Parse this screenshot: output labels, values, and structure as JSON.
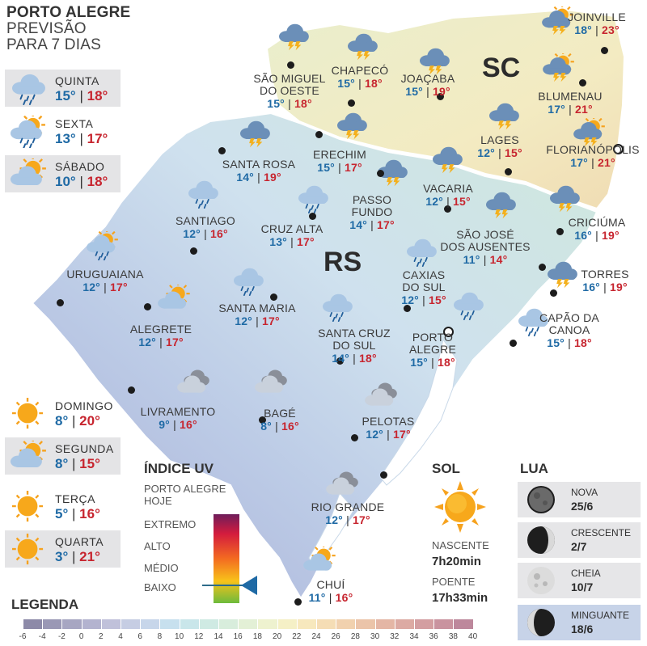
{
  "header": {
    "line1": "PORTO ALEGRE",
    "line2": "PREVISÃO",
    "line3": "PARA 7 DIAS"
  },
  "forecast": [
    {
      "day": "QUINTA",
      "min": "15°",
      "max": "18°",
      "icon": "rain-cloud-icon",
      "shaded": true
    },
    {
      "day": "SEXTA",
      "min": "13°",
      "max": "17°",
      "icon": "sun-rain-cloud-icon",
      "shaded": false
    },
    {
      "day": "SÁBADO",
      "min": "10°",
      "max": "18°",
      "icon": "partly-sunny-icon",
      "shaded": true
    },
    {
      "day": "DOMINGO",
      "min": "8°",
      "max": "20°",
      "icon": "sun-icon",
      "shaded": false
    },
    {
      "day": "SEGUNDA",
      "min": "8°",
      "max": "15°",
      "icon": "partly-sunny-icon",
      "shaded": true
    },
    {
      "day": "TERÇA",
      "min": "5°",
      "max": "16°",
      "icon": "sun-icon",
      "shaded": false
    },
    {
      "day": "QUARTA",
      "min": "3°",
      "max": "21°",
      "icon": "sun-icon",
      "shaded": true
    }
  ],
  "states": {
    "sc": "SC",
    "rs": "RS"
  },
  "cities": [
    {
      "name1": "JOINVILLE",
      "name2": "",
      "min": "18°",
      "max": "23°",
      "icon": "sun-storm-icon"
    },
    {
      "name1": "SÃO MIGUEL",
      "name2": "DO OESTE",
      "min": "15°",
      "max": "18°",
      "icon": "storm-cloud-icon"
    },
    {
      "name1": "CHAPECÓ",
      "name2": "",
      "min": "15°",
      "max": "18°",
      "icon": "storm-cloud-icon"
    },
    {
      "name1": "JOAÇABA",
      "name2": "",
      "min": "15°",
      "max": "19°",
      "icon": "storm-cloud-icon"
    },
    {
      "name1": "BLUMENAU",
      "name2": "",
      "min": "17°",
      "max": "21°",
      "icon": "sun-storm-icon"
    },
    {
      "name1": "LAGES",
      "name2": "",
      "min": "12°",
      "max": "15°",
      "icon": "storm-cloud-icon"
    },
    {
      "name1": "FLORIANÓPOLIS",
      "name2": "",
      "min": "17°",
      "max": "21°",
      "icon": "sun-storm-icon"
    },
    {
      "name1": "SANTA ROSA",
      "name2": "",
      "min": "14°",
      "max": "19°",
      "icon": "storm-cloud-icon"
    },
    {
      "name1": "ERECHIM",
      "name2": "",
      "min": "15°",
      "max": "17°",
      "icon": "storm-cloud-icon"
    },
    {
      "name1": "PASSO",
      "name2": "FUNDO",
      "min": "14°",
      "max": "17°",
      "icon": "storm-cloud-icon"
    },
    {
      "name1": "VACARIA",
      "name2": "",
      "min": "12°",
      "max": "15°",
      "icon": "storm-cloud-icon"
    },
    {
      "name1": "CRICIÚMA",
      "name2": "",
      "min": "16°",
      "max": "19°",
      "icon": "storm-cloud-icon"
    },
    {
      "name1": "SANTIAGO",
      "name2": "",
      "min": "12°",
      "max": "16°",
      "icon": "rain-cloud-icon"
    },
    {
      "name1": "CRUZ ALTA",
      "name2": "",
      "min": "13°",
      "max": "17°",
      "icon": "rain-cloud-icon"
    },
    {
      "name1": "SÃO JOSÉ",
      "name2": "DOS AUSENTES",
      "min": "11°",
      "max": "14°",
      "icon": "storm-cloud-icon"
    },
    {
      "name1": "URUGUAIANA",
      "name2": "",
      "min": "12°",
      "max": "17°",
      "icon": "sun-rain-cloud-icon"
    },
    {
      "name1": "TORRES",
      "name2": "",
      "min": "16°",
      "max": "19°",
      "icon": "storm-cloud-icon"
    },
    {
      "name1": "SANTA MARIA",
      "name2": "",
      "min": "12°",
      "max": "17°",
      "icon": "rain-cloud-icon"
    },
    {
      "name1": "CAXIAS",
      "name2": "DO SUL",
      "min": "12°",
      "max": "15°",
      "icon": "rain-cloud-icon"
    },
    {
      "name1": "ALEGRETE",
      "name2": "",
      "min": "12°",
      "max": "17°",
      "icon": "partly-sunny-icon"
    },
    {
      "name1": "SANTA CRUZ",
      "name2": "DO SUL",
      "min": "14°",
      "max": "18°",
      "icon": "rain-cloud-icon"
    },
    {
      "name1": "PORTO",
      "name2": "ALEGRE",
      "min": "15°",
      "max": "18°",
      "icon": "rain-cloud-icon"
    },
    {
      "name1": "CAPÃO DA",
      "name2": "CANOA",
      "min": "15°",
      "max": "18°",
      "icon": "rain-cloud-icon"
    },
    {
      "name1": "LIVRAMENTO",
      "name2": "",
      "min": "9°",
      "max": "16°",
      "icon": "cloudy-icon"
    },
    {
      "name1": "BAGÉ",
      "name2": "",
      "min": "8°",
      "max": "16°",
      "icon": "cloudy-icon"
    },
    {
      "name1": "PELOTAS",
      "name2": "",
      "min": "12°",
      "max": "17°",
      "icon": "cloudy-icon"
    },
    {
      "name1": "RIO GRANDE",
      "name2": "",
      "min": "12°",
      "max": "17°",
      "icon": "cloudy-icon"
    },
    {
      "name1": "CHUÍ",
      "name2": "",
      "min": "11°",
      "max": "16°",
      "icon": "partly-sunny-icon"
    }
  ],
  "uv": {
    "title": "ÍNDICE UV",
    "sub1": "PORTO ALEGRE",
    "sub2": "HOJE",
    "levels": [
      "EXTREMO",
      "ALTO",
      "MÉDIO",
      "BAIXO"
    ],
    "current": "BAIXO"
  },
  "sol": {
    "title": "SOL",
    "sunrise_label": "NASCENTE",
    "sunrise": "7h20min",
    "sunset_label": "POENTE",
    "sunset": "17h33min"
  },
  "lua": {
    "title": "LUA",
    "phases": [
      {
        "name": "NOVA",
        "date": "25/6",
        "highlight": false
      },
      {
        "name": "CRESCENTE",
        "date": "2/7",
        "highlight": false
      },
      {
        "name": "CHEIA",
        "date": "10/7",
        "highlight": false
      },
      {
        "name": "MINGUANTE",
        "date": "18/6",
        "highlight": true
      }
    ]
  },
  "legend": {
    "title": "LEGENDA",
    "labels": [
      "-6",
      "-4",
      "-2",
      "0",
      "2",
      "4",
      "6",
      "8",
      "10",
      "12",
      "14",
      "16",
      "18",
      "20",
      "22",
      "24",
      "26",
      "28",
      "30",
      "32",
      "34",
      "36",
      "38",
      "40"
    ],
    "colors": [
      "#8d8aa8",
      "#9a98b5",
      "#a7a6c2",
      "#b3b3cf",
      "#c0c1da",
      "#c6cde3",
      "#c7d6ea",
      "#c7e0ee",
      "#c9e6ea",
      "#cfeae3",
      "#d8eddc",
      "#e3f0d6",
      "#eef2cf",
      "#f5f0c6",
      "#f7e8bd",
      "#f5ddb5",
      "#f1d1ae",
      "#ebc4a9",
      "#e4b6a5",
      "#dcaaa3",
      "#d39ea1",
      "#c9939f",
      "#bd889c"
    ]
  }
}
